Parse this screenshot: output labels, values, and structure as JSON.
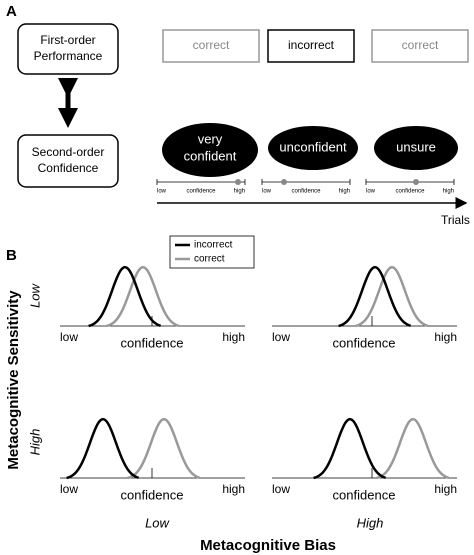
{
  "panel_a": {
    "label": "A",
    "first_order": [
      "First-order",
      "Performance"
    ],
    "second_order": [
      "Second-order",
      "Confidence"
    ],
    "trials": [
      {
        "outcome": "correct",
        "confidence": [
          "very",
          "confident"
        ]
      },
      {
        "outcome": "incorrect",
        "confidence": [
          "unconfident"
        ]
      },
      {
        "outcome": "correct",
        "confidence": [
          "unsure"
        ]
      }
    ],
    "scale_labels": [
      "low",
      "confidence",
      "high"
    ],
    "axis_label": "Trials"
  },
  "panel_b": {
    "label": "B",
    "y_label": "Metacognitive Sensitivity",
    "y_levels": [
      "Low",
      "High"
    ],
    "x_label": "Metacognitive Bias",
    "x_levels": [
      "Low",
      "High"
    ],
    "legend": [
      "incorrect",
      "correct"
    ],
    "axis_labels": [
      "low",
      "confidence",
      "high"
    ]
  }
}
